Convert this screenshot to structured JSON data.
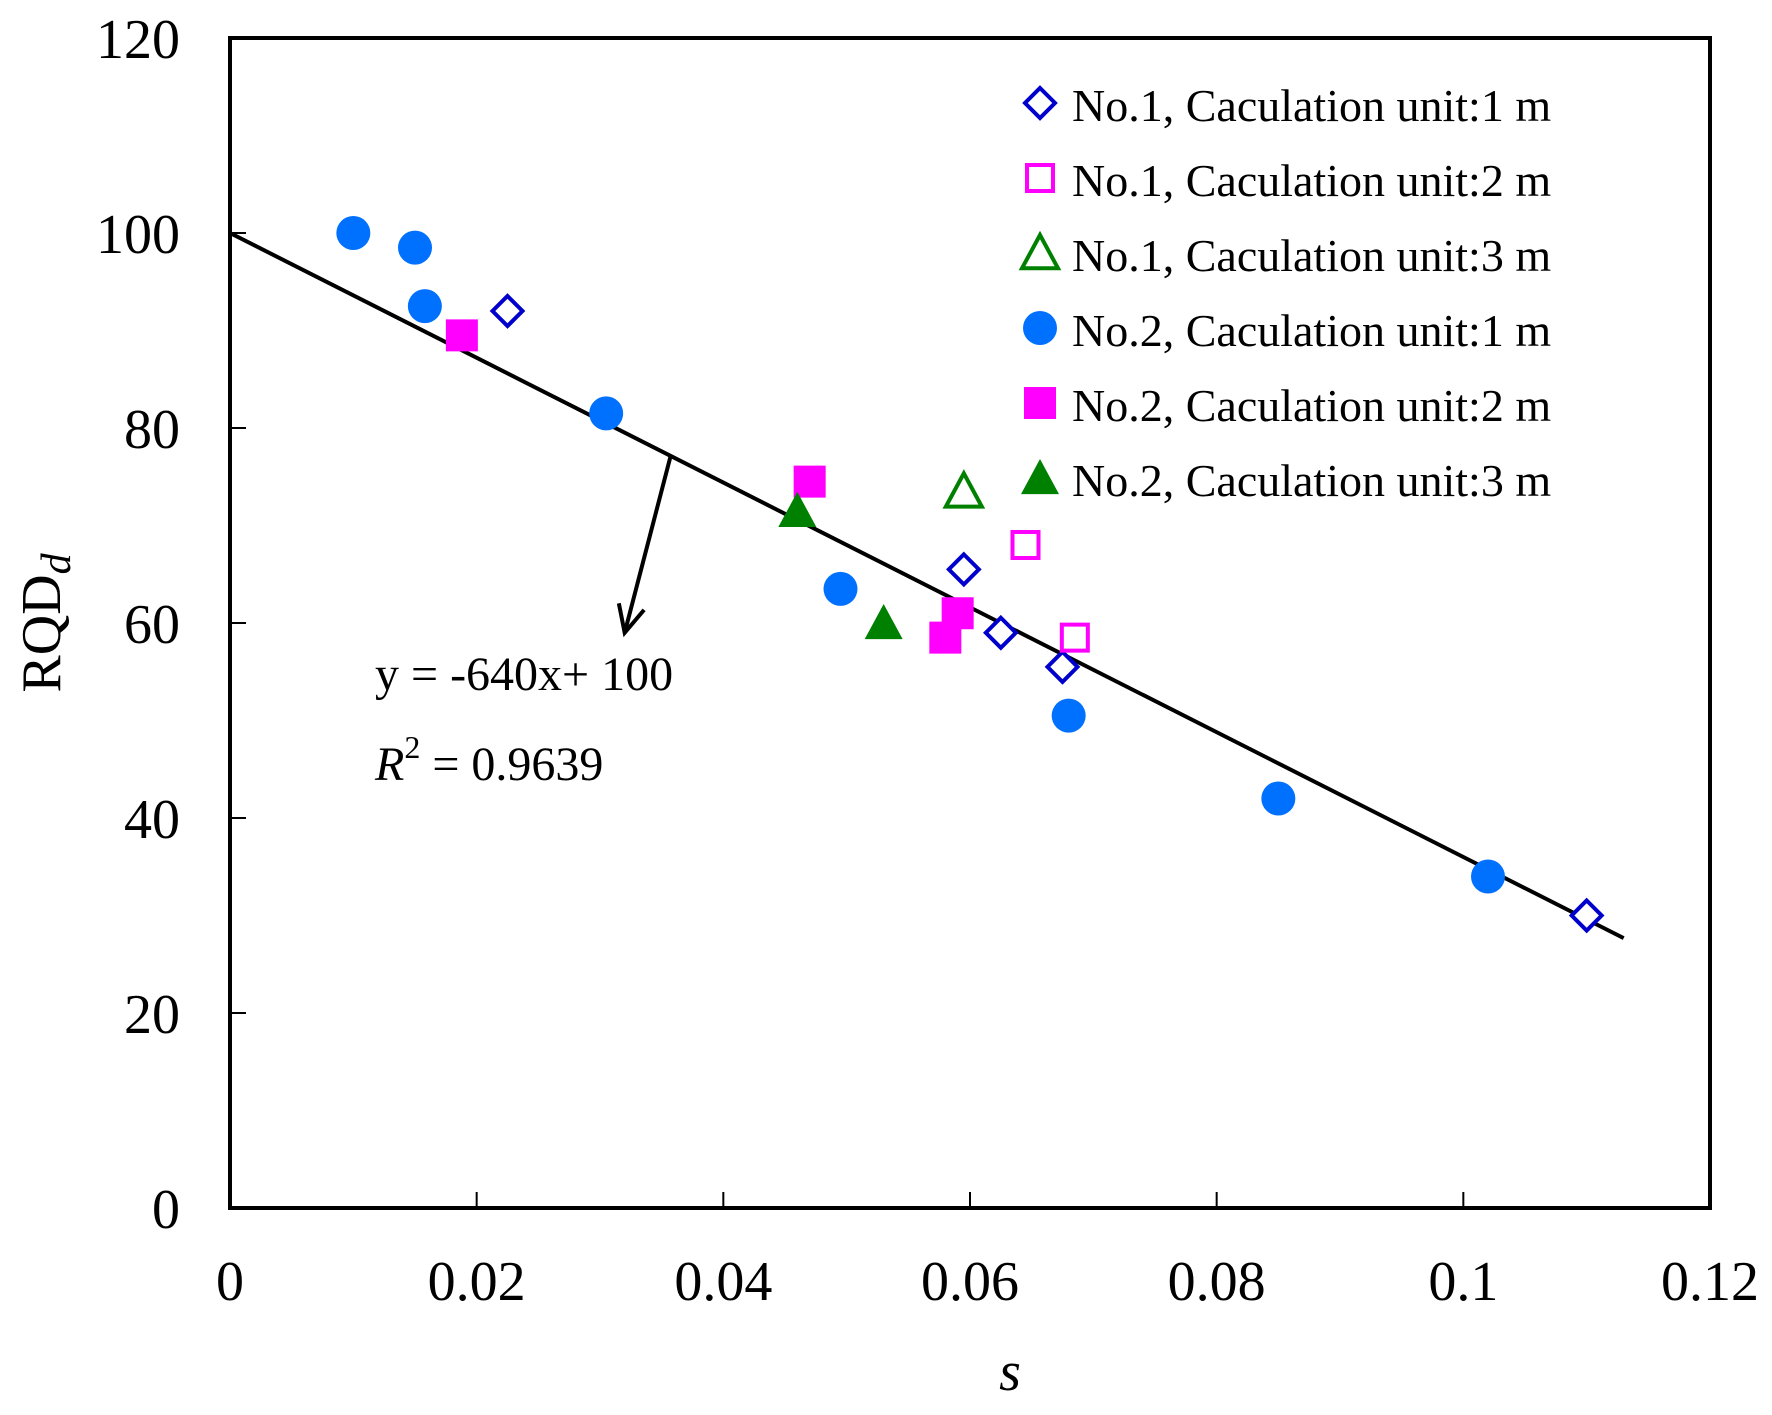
{
  "chart_data": {
    "type": "scatter",
    "title": "",
    "xlabel": "s",
    "ylabel_main": "RQD",
    "ylabel_sub": "d",
    "xlim": [
      0,
      0.12
    ],
    "ylim": [
      0,
      120
    ],
    "x_ticks": [
      0,
      0.02,
      0.04,
      0.06,
      0.08,
      0.1,
      0.12
    ],
    "x_tick_labels": [
      "0",
      "0.02",
      "0.04",
      "0.06",
      "0.08",
      "0.1",
      "0.12"
    ],
    "y_ticks": [
      0,
      20,
      40,
      60,
      80,
      100,
      120
    ],
    "y_tick_labels": [
      "0",
      "20",
      "40",
      "60",
      "80",
      "100",
      "120"
    ],
    "grid": false,
    "legend_position": "top-right",
    "series": [
      {
        "name": "No.1, Caculation unit:1 m",
        "marker": "diamond-open",
        "color": "#0000cc",
        "points": [
          [
            0.0225,
            92
          ],
          [
            0.0595,
            65.5
          ],
          [
            0.0625,
            59
          ],
          [
            0.0675,
            55.5
          ],
          [
            0.11,
            30
          ]
        ]
      },
      {
        "name": "No.1, Caculation unit:2 m",
        "marker": "square-open",
        "color": "#ff00ff",
        "points": [
          [
            0.0645,
            68
          ],
          [
            0.0685,
            58.5
          ]
        ]
      },
      {
        "name": "No.1, Caculation unit:3 m",
        "marker": "triangle-open",
        "color": "#008000",
        "points": [
          [
            0.0595,
            73.5
          ]
        ]
      },
      {
        "name": "No.2, Caculation unit:1 m",
        "marker": "circle-filled",
        "color": "#0070ff",
        "points": [
          [
            0.01,
            100
          ],
          [
            0.015,
            98.5
          ],
          [
            0.0158,
            92.5
          ],
          [
            0.0305,
            81.5
          ],
          [
            0.0495,
            63.5
          ],
          [
            0.068,
            50.5
          ],
          [
            0.085,
            42
          ],
          [
            0.102,
            34
          ]
        ]
      },
      {
        "name": "No.2, Caculation unit:2 m",
        "marker": "square-filled",
        "color": "#ff00ff",
        "points": [
          [
            0.0188,
            89.5
          ],
          [
            0.047,
            74.5
          ],
          [
            0.058,
            58.5
          ],
          [
            0.059,
            61
          ]
        ]
      },
      {
        "name": "No.2, Caculation unit:3 m",
        "marker": "triangle-filled",
        "color": "#008000",
        "points": [
          [
            0.046,
            71.5
          ],
          [
            0.053,
            60
          ]
        ]
      }
    ],
    "fit_line": {
      "slope": -640,
      "intercept": 100,
      "x_range": [
        0,
        0.113
      ],
      "color": "#000000"
    },
    "annotations": {
      "equation": "y = -640x+ 100",
      "r2_label": "R",
      "r2_exp": "2",
      "r2_value": " = 0.9639",
      "arrow_from": [
        0.0357,
        77
      ],
      "arrow_to": [
        0.032,
        59
      ]
    }
  }
}
